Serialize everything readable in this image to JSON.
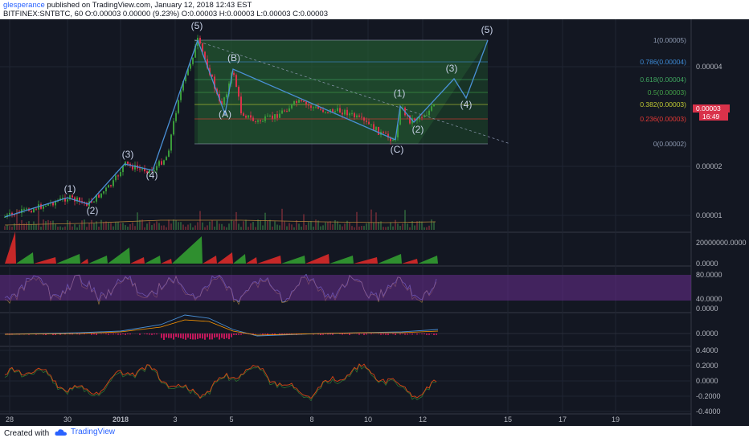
{
  "header": {
    "author": "glesperance",
    "published": " published on TradingView.com, January 12, 2018 12:43 EST",
    "symbol_line": "BITFINEX:SNTBTC, 60  O:0.00003 0.00000 (9.23%)  O:0.00003 H:0.00003 L:0.00003 C:0.00003"
  },
  "footer": {
    "created_with": "Created with",
    "brand": "TradingView"
  },
  "colors": {
    "background": "#131722",
    "up_candle": "#3a9a3a",
    "down_candle": "#d9324a",
    "wave_line": "#4a90d6",
    "fib_band": "#1e4a2a",
    "stoch_band": "#6a2d8f",
    "macd_signal": "#c2185b",
    "oscillator": "#d84315"
  },
  "chart_data": [
    {
      "type": "line",
      "title": "",
      "y_scale": "log",
      "x_ticks": [
        "28",
        "30",
        "2018",
        "3",
        "5",
        "8",
        "10",
        "12",
        "15",
        "17",
        "19"
      ],
      "y_ticks": [
        "0.00004",
        "0.00002",
        "0.00001"
      ],
      "price_labels": {
        "current": "0.00003",
        "countdown": "16:49"
      },
      "fib_levels": [
        {
          "label": "1(0.00005)",
          "color": "#8f9bb3"
        },
        {
          "label": "0.786(0.00004)",
          "color": "#3d8bd6"
        },
        {
          "label": "0.618(0.00004)",
          "color": "#3fa65f"
        },
        {
          "label": "0.5(0.00003)",
          "color": "#43a047"
        },
        {
          "label": "0.382(0.00003)",
          "color": "#c0ca33"
        },
        {
          "label": "0.236(0.00003)",
          "color": "#e53935"
        },
        {
          "label": "0(0.00002)",
          "color": "#8f9bb3"
        }
      ],
      "wave_labels": [
        "(1)",
        "(2)",
        "(3)",
        "(4)",
        "(5)",
        "(A)",
        "(B)",
        "(C)",
        "(1)",
        "(2)",
        "(3)",
        "(4)",
        "(5)"
      ]
    },
    {
      "type": "area",
      "title": "",
      "y_ticks": [
        "20000000.0000",
        "0.0000"
      ],
      "colors": [
        "#d9324a",
        "#3a9a3a"
      ]
    },
    {
      "type": "line",
      "title": "",
      "y_ticks": [
        "80.0000",
        "40.0000",
        "0.0000"
      ],
      "band": [
        20,
        80
      ]
    },
    {
      "type": "line",
      "title": "",
      "y_ticks": [
        "0.0000"
      ]
    },
    {
      "type": "line",
      "title": "",
      "y_ticks": [
        "0.4000",
        "0.2000",
        "0.0000",
        "-0.2000",
        "-0.4000"
      ]
    }
  ]
}
